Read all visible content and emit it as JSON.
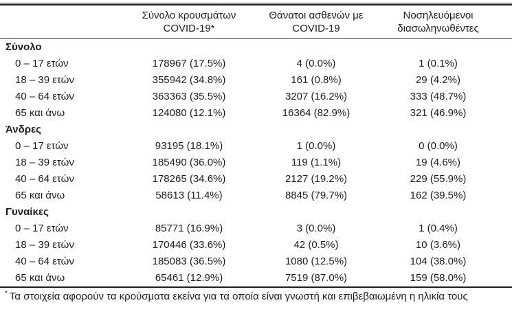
{
  "table": {
    "header": {
      "cases": {
        "line1": "Σύνολο κρουσμάτων",
        "line2": "COVID-19*"
      },
      "deaths": {
        "line1": "Θάνατοι ασθενών με",
        "line2": "COVID-19"
      },
      "intubated": {
        "line1": "Νοσηλευόμενοι",
        "line2": "διασωληνωθέντες"
      }
    },
    "sections": [
      {
        "label": "Σύνολο",
        "rows": [
          {
            "label": "0 – 17 ετών",
            "cases": "178967 (17.5%)",
            "deaths": "4 (0.0%)",
            "intubated": "1 (0.1%)"
          },
          {
            "label": "18 – 39 ετών",
            "cases": "355942 (34.8%)",
            "deaths": "161 (0.8%)",
            "intubated": "29 (4.2%)"
          },
          {
            "label": "40 – 64 ετών",
            "cases": "363363 (35.5%)",
            "deaths": "3207 (16.2%)",
            "intubated": "333 (48.7%)"
          },
          {
            "label": "65 και άνω",
            "cases": "124080 (12.1%)",
            "deaths": "16364 (82.9%)",
            "intubated": "321 (46.9%)"
          }
        ]
      },
      {
        "label": "Άνδρες",
        "rows": [
          {
            "label": "0 – 17 ετών",
            "cases": "93195 (18.1%)",
            "deaths": "1 (0.0%)",
            "intubated": "0 (0.0%)"
          },
          {
            "label": "18 – 39 ετών",
            "cases": "185490 (36.0%)",
            "deaths": "119 (1.1%)",
            "intubated": "19 (4.6%)"
          },
          {
            "label": "40 – 64 ετών",
            "cases": "178265 (34.6%)",
            "deaths": "2127 (19.2%)",
            "intubated": "229 (55.9%)"
          },
          {
            "label": "65 και άνω",
            "cases": "58613 (11.4%)",
            "deaths": "8845 (79.7%)",
            "intubated": "162 (39.5%)"
          }
        ]
      },
      {
        "label": "Γυναίκες",
        "rows": [
          {
            "label": "0 – 17 ετών",
            "cases": "85771 (16.9%)",
            "deaths": "3 (0.0%)",
            "intubated": "1 (0.4%)"
          },
          {
            "label": "18 – 39 ετών",
            "cases": "170446 (33.6%)",
            "deaths": "42 (0.5%)",
            "intubated": "10 (3.6%)"
          },
          {
            "label": "40 – 64 ετών",
            "cases": "185083 (36.5%)",
            "deaths": "1080 (12.5%)",
            "intubated": "104 (38.0%)"
          },
          {
            "label": "65 και άνω",
            "cases": "65461 (12.9%)",
            "deaths": "7519 (87.0%)",
            "intubated": "159 (58.0%)"
          }
        ]
      }
    ],
    "footnote": {
      "marker": "*",
      "text": "Τα στοιχεία αφορούν τα κρούσματα εκείνα για τα οποία είναι γνωστή και επιβεβαιωμένη η ηλικία τους"
    }
  }
}
